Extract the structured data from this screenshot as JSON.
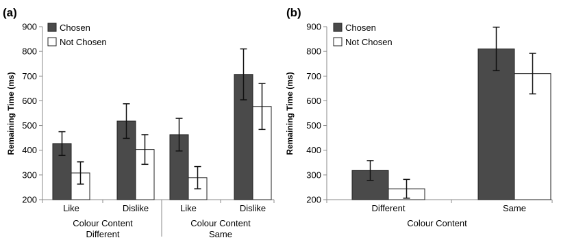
{
  "chart_data": [
    {
      "panel": "(a)",
      "type": "bar",
      "ylabel": "Remaining Time (ms)",
      "ylim": [
        200,
        900
      ],
      "yticks": [
        "200",
        "300",
        "400",
        "500",
        "600",
        "700",
        "800",
        "900"
      ],
      "categories": [
        "Like",
        "Dislike",
        "Like",
        "Dislike"
      ],
      "groups": [
        {
          "line1": "Colour Content",
          "line2": "Different"
        },
        {
          "line1": "Colour Content",
          "line2": "Same"
        }
      ],
      "series": [
        {
          "name": "Chosen",
          "color": "#4a4a4a",
          "values": [
            427,
            518,
            463,
            707
          ],
          "errors": [
            48,
            70,
            66,
            103
          ]
        },
        {
          "name": "Not Chosen",
          "color": "#ffffff",
          "values": [
            308,
            403,
            289,
            577
          ],
          "errors": [
            45,
            60,
            45,
            93
          ]
        }
      ],
      "legend": "top-left",
      "grid": false
    },
    {
      "panel": "(b)",
      "type": "bar",
      "ylabel": "Remaining Time (ms)",
      "xlabel": "Colour Content",
      "ylim": [
        200,
        900
      ],
      "yticks": [
        "200",
        "300",
        "400",
        "500",
        "600",
        "700",
        "800",
        "900"
      ],
      "categories": [
        "Different",
        "Same"
      ],
      "series": [
        {
          "name": "Chosen",
          "color": "#4a4a4a",
          "values": [
            318,
            810
          ],
          "errors": [
            40,
            88
          ]
        },
        {
          "name": "Not Chosen",
          "color": "#ffffff",
          "values": [
            244,
            710
          ],
          "errors": [
            38,
            82
          ]
        }
      ],
      "legend": "top-left",
      "grid": false
    }
  ]
}
